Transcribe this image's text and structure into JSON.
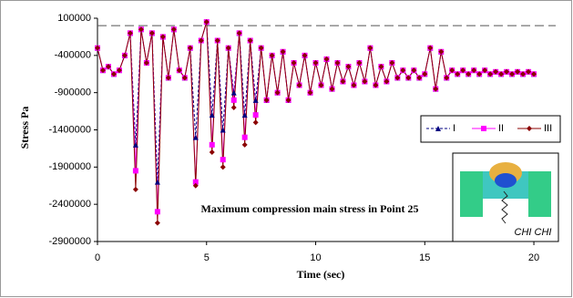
{
  "chart_data": {
    "type": "line",
    "annotation": "Maximum compression main stress in Point 25",
    "x_label": "Time  (sec)",
    "y_label": "Stress   Pa",
    "inset_label": "CHI CHI",
    "xlim": [
      0,
      21
    ],
    "xticks": [
      0,
      5,
      10,
      15,
      20
    ],
    "ylim": [
      -2900000,
      100000
    ],
    "yticks": [
      100000,
      -400000,
      -900000,
      -1400000,
      -1900000,
      -2400000,
      -2900000
    ],
    "reference_line": 0,
    "reference_color": "#555555",
    "legend": "right",
    "x": [
      0,
      0.25,
      0.5,
      0.75,
      1,
      1.25,
      1.5,
      1.75,
      2,
      2.25,
      2.5,
      2.75,
      3,
      3.25,
      3.5,
      3.75,
      4,
      4.25,
      4.5,
      4.75,
      5,
      5.25,
      5.5,
      5.75,
      6,
      6.25,
      6.5,
      6.75,
      7,
      7.25,
      7.5,
      7.75,
      8,
      8.25,
      8.5,
      8.75,
      9,
      9.25,
      9.5,
      9.75,
      10,
      10.25,
      10.5,
      10.75,
      11,
      11.25,
      11.5,
      11.75,
      12,
      12.25,
      12.5,
      12.75,
      13,
      13.25,
      13.5,
      13.75,
      14,
      14.25,
      14.5,
      14.75,
      15,
      15.25,
      15.5,
      15.75,
      16,
      16.25,
      16.5,
      16.75,
      17,
      17.25,
      17.5,
      17.75,
      18,
      18.25,
      18.5,
      18.75,
      19,
      19.25,
      19.5,
      19.75,
      20
    ],
    "series": [
      {
        "name": "I",
        "color": "#000080",
        "marker": "triangle",
        "dash": true,
        "values": [
          -300000,
          -600000,
          -550000,
          -650000,
          -600000,
          -400000,
          -100000,
          -1600000,
          -50000,
          -500000,
          -100000,
          -2100000,
          -150000,
          -700000,
          -50000,
          -600000,
          -700000,
          -300000,
          -1500000,
          -200000,
          50000,
          -1200000,
          -200000,
          -1400000,
          -300000,
          -900000,
          -100000,
          -1200000,
          -200000,
          -1000000,
          -300000,
          -1000000,
          -400000,
          -900000,
          -350000,
          -1000000,
          -500000,
          -800000,
          -400000,
          -900000,
          -500000,
          -800000,
          -450000,
          -850000,
          -500000,
          -750000,
          -550000,
          -800000,
          -500000,
          -750000,
          -300000,
          -800000,
          -550000,
          -750000,
          -500000,
          -700000,
          -600000,
          -700000,
          -600000,
          -700000,
          -650000,
          -300000,
          -850000,
          -350000,
          -700000,
          -600000,
          -650000,
          -600000,
          -650000,
          -600000,
          -650000,
          -600000,
          -650000,
          -620000,
          -650000,
          -620000,
          -650000,
          -620000,
          -650000,
          -620000,
          -650000
        ]
      },
      {
        "name": "II",
        "color": "#ff00ff",
        "marker": "square",
        "dash": false,
        "values": [
          -300000,
          -600000,
          -550000,
          -650000,
          -600000,
          -400000,
          -100000,
          -1950000,
          -50000,
          -500000,
          -100000,
          -2500000,
          -150000,
          -700000,
          -50000,
          -600000,
          -700000,
          -300000,
          -2100000,
          -200000,
          50000,
          -1600000,
          -200000,
          -1800000,
          -300000,
          -1000000,
          -100000,
          -1500000,
          -200000,
          -1200000,
          -300000,
          -1000000,
          -400000,
          -900000,
          -350000,
          -1000000,
          -500000,
          -800000,
          -400000,
          -900000,
          -500000,
          -800000,
          -450000,
          -850000,
          -500000,
          -750000,
          -550000,
          -800000,
          -500000,
          -750000,
          -300000,
          -800000,
          -550000,
          -750000,
          -500000,
          -700000,
          -600000,
          -700000,
          -600000,
          -700000,
          -650000,
          -300000,
          -850000,
          -350000,
          -700000,
          -600000,
          -650000,
          -600000,
          -650000,
          -600000,
          -650000,
          -600000,
          -650000,
          -620000,
          -650000,
          -620000,
          -650000,
          -620000,
          -650000,
          -620000,
          -650000
        ]
      },
      {
        "name": "III",
        "color": "#8b0000",
        "marker": "diamond",
        "dash": false,
        "values": [
          -300000,
          -600000,
          -550000,
          -650000,
          -600000,
          -400000,
          -100000,
          -2200000,
          -50000,
          -500000,
          -100000,
          -2650000,
          -150000,
          -700000,
          -50000,
          -600000,
          -700000,
          -300000,
          -2150000,
          -200000,
          50000,
          -1700000,
          -200000,
          -1900000,
          -300000,
          -1100000,
          -100000,
          -1600000,
          -200000,
          -1300000,
          -300000,
          -1000000,
          -400000,
          -900000,
          -350000,
          -1000000,
          -500000,
          -800000,
          -400000,
          -900000,
          -500000,
          -800000,
          -450000,
          -850000,
          -500000,
          -750000,
          -550000,
          -800000,
          -500000,
          -750000,
          -300000,
          -800000,
          -550000,
          -750000,
          -500000,
          -700000,
          -600000,
          -700000,
          -600000,
          -700000,
          -650000,
          -300000,
          -850000,
          -350000,
          -700000,
          -600000,
          -650000,
          -600000,
          -650000,
          -600000,
          -650000,
          -600000,
          -650000,
          -620000,
          -650000,
          -620000,
          -650000,
          -620000,
          -650000,
          -620000,
          -650000
        ]
      }
    ]
  }
}
